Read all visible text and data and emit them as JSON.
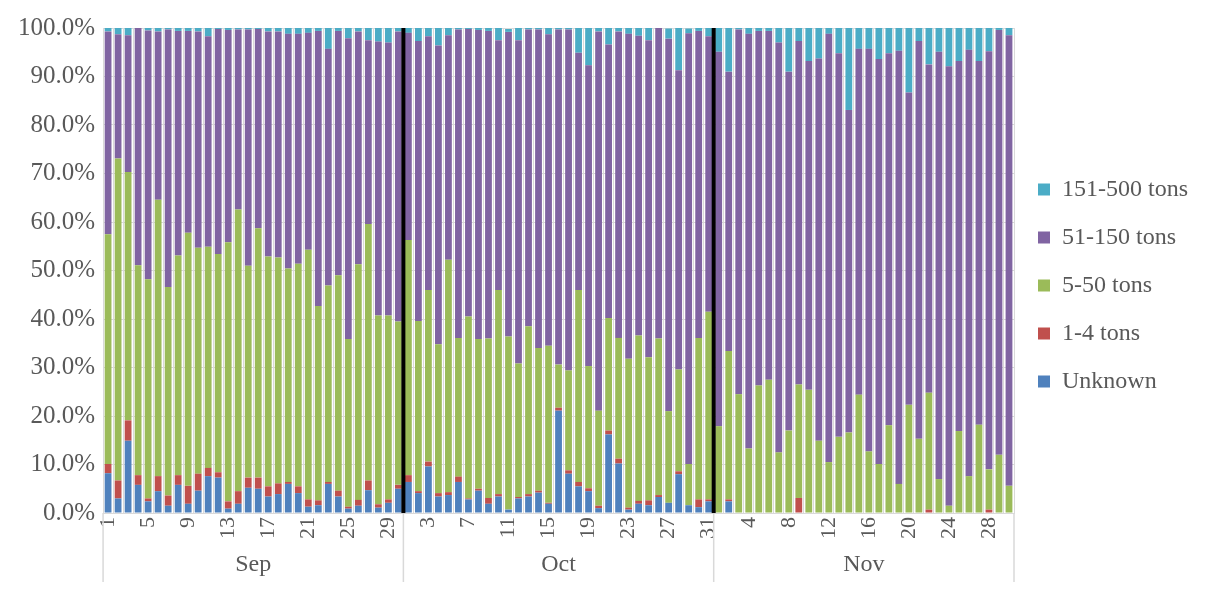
{
  "chart_data": {
    "type": "bar",
    "stacked": true,
    "grid": true,
    "legend": "right",
    "categories": [
      "1",
      null,
      null,
      null,
      "5",
      null,
      null,
      null,
      "9",
      null,
      null,
      null,
      "13",
      null,
      null,
      null,
      "17",
      null,
      null,
      null,
      "21",
      null,
      null,
      null,
      "25",
      null,
      null,
      null,
      "29",
      null,
      null,
      null,
      "3",
      null,
      null,
      null,
      "7",
      null,
      null,
      null,
      "11",
      null,
      null,
      null,
      "15",
      null,
      null,
      null,
      "19",
      null,
      null,
      null,
      "23",
      null,
      null,
      null,
      "27",
      null,
      null,
      null,
      "31",
      null,
      null,
      null,
      "4",
      null,
      null,
      null,
      "8",
      null,
      null,
      null,
      "12",
      null,
      null,
      null,
      "16",
      null,
      null,
      null,
      "20",
      null,
      null,
      null,
      "24",
      null,
      null,
      null,
      "28",
      null,
      null
    ],
    "annotations": [
      "Sep",
      "Oct",
      "Nov"
    ],
    "ylim": [
      0,
      100
    ],
    "yticks": [
      {
        "value": 0,
        "label": "0.0%"
      },
      {
        "value": 10,
        "label": "10.0%"
      },
      {
        "value": 20,
        "label": "20.0%"
      },
      {
        "value": 30,
        "label": "30.0%"
      },
      {
        "value": 40,
        "label": "40.0%"
      },
      {
        "value": 50,
        "label": "50.0%"
      },
      {
        "value": 60,
        "label": "60.0%"
      },
      {
        "value": 70,
        "label": "70.0%"
      },
      {
        "value": 80,
        "label": "80.0%"
      },
      {
        "value": 90,
        "label": "90.0%"
      },
      {
        "value": 100,
        "label": "100.0%"
      }
    ],
    "series": [
      {
        "name": "Unknown",
        "color": "#4f81bd",
        "values": [
          8.2,
          3.0,
          14.9,
          5.8,
          2.4,
          4.5,
          1.5,
          5.8,
          1.9,
          4.6,
          7.6,
          7.3,
          0.9,
          1.9,
          5.2,
          5.0,
          3.4,
          3.9,
          6.0,
          4.1,
          1.3,
          1.6,
          6.0,
          3.4,
          0.9,
          1.5,
          4.7,
          1.1,
          2.1,
          5.0,
          6.4,
          4.1,
          9.6,
          3.4,
          3.7,
          6.4,
          2.8,
          4.6,
          1.9,
          3.4,
          0.7,
          3.0,
          3.4,
          4.2,
          1.9,
          21.1,
          8.1,
          5.5,
          4.5,
          1.0,
          16.2,
          10.2,
          0.7,
          1.9,
          1.6,
          3.3,
          2.1,
          8.0,
          1.6,
          1.2,
          2.4,
          0,
          2.4,
          0,
          0,
          0,
          0,
          0,
          0,
          0,
          0,
          0,
          0,
          0,
          0,
          0,
          0,
          0,
          0,
          0,
          0,
          0,
          0,
          0,
          0,
          0,
          0,
          0,
          0,
          0,
          0
        ]
      },
      {
        "name": "1-4 tons",
        "color": "#c0504d",
        "values": [
          1.9,
          3.7,
          4.2,
          2.0,
          0.6,
          3.1,
          2.1,
          2.0,
          3.7,
          3.5,
          1.7,
          1.1,
          1.5,
          2.6,
          2.1,
          2.3,
          2.1,
          2.2,
          0.4,
          1.4,
          1.5,
          1.0,
          0.4,
          1.2,
          0.4,
          1.2,
          2.0,
          0.7,
          0.7,
          0.8,
          1.4,
          0.4,
          1.0,
          0.7,
          0.6,
          1.1,
          0.2,
          0.4,
          1.2,
          0.5,
          null,
          0.3,
          0.5,
          0.4,
          0.2,
          0.6,
          0.7,
          0.9,
          0.6,
          0.5,
          0.8,
          1.0,
          0.4,
          0.6,
          1.0,
          0.4,
          null,
          0.6,
          null,
          1.6,
          0.4,
          0,
          0.4,
          0,
          0,
          0,
          0,
          0,
          0,
          3.1,
          0,
          0,
          0,
          0,
          0,
          0,
          0,
          0,
          0,
          0,
          0,
          0,
          0.7,
          0,
          0,
          0,
          0,
          0,
          0.7,
          0,
          0
        ]
      },
      {
        "name": "5-50 tons",
        "color": "#9bbb59",
        "values": [
          47.4,
          66.4,
          51.2,
          43.3,
          45.2,
          57.0,
          43.0,
          45.3,
          52.2,
          46.6,
          45.6,
          45.0,
          53.4,
          58.1,
          43.7,
          51.4,
          47.4,
          46.6,
          44.0,
          45.9,
          51.5,
          40.1,
          40.5,
          44.4,
          34.6,
          48.6,
          52.9,
          38.9,
          37.9,
          33.7,
          48.5,
          35.1,
          35.4,
          30.7,
          47.9,
          28.6,
          37.5,
          30.9,
          32.9,
          42.1,
          35.7,
          27.5,
          34.6,
          29.4,
          32.4,
          8.9,
          20.6,
          39.6,
          25.2,
          19.6,
          23.2,
          24.9,
          30.7,
          34.1,
          29.5,
          32.3,
          18.9,
          21.0,
          8.5,
          33.3,
          38.7,
          17.9,
          30.6,
          24.5,
          13.3,
          26.3,
          27.5,
          12.5,
          17.0,
          23.4,
          25.4,
          14.9,
          10.5,
          15.7,
          16.6,
          24.4,
          12.7,
          10.1,
          18.1,
          6.0,
          22.3,
          15.3,
          24.1,
          7.0,
          1.5,
          16.9,
          7.6,
          18.2,
          8.3,
          12.0,
          5.6
        ]
      },
      {
        "name": "51-150 tons",
        "color": "#8064a2",
        "values": [
          41.8,
          25.6,
          28.2,
          48.9,
          51.3,
          34.7,
          53.1,
          46.3,
          41.6,
          44.6,
          43.4,
          46.4,
          43.8,
          37.1,
          48.7,
          41.1,
          46.4,
          46.6,
          48.4,
          47.4,
          44.7,
          56.7,
          48.8,
          50.4,
          62.0,
          48.0,
          37.9,
          56.5,
          56.3,
          59.8,
          42.7,
          57.7,
          52.3,
          61.6,
          46.3,
          63.6,
          59.3,
          63.7,
          63.4,
          51.5,
          62.8,
          66.7,
          61.2,
          65.7,
          64.2,
          69.1,
          70.3,
          48.9,
          62.0,
          78.2,
          56.4,
          63.2,
          67.0,
          61.8,
          65.4,
          64.0,
          76.8,
          61.7,
          88.8,
          63.3,
          56.8,
          77.2,
          57.6,
          75.2,
          85.5,
          73.1,
          71.9,
          84.5,
          74.0,
          70.8,
          67.8,
          78.8,
          88.3,
          79.1,
          66.5,
          71.3,
          83.0,
          83.5,
          76.7,
          89.3,
          64.4,
          82.0,
          67.7,
          88.1,
          90.6,
          76.3,
          87.9,
          75.0,
          86.2,
          87.6,
          92.9
        ]
      },
      {
        "name": "151-500 tons",
        "color": "#4bacc6",
        "values": [
          0.7,
          1.3,
          1.5,
          0,
          0.5,
          0.7,
          0.3,
          0.6,
          0.6,
          0.7,
          1.7,
          0.2,
          0.4,
          0.3,
          0.3,
          0.2,
          0.7,
          0.7,
          1.2,
          1.2,
          1.0,
          0.6,
          4.3,
          0.6,
          2.1,
          0.7,
          2.5,
          2.8,
          3.0,
          0.7,
          1.0,
          2.7,
          1.7,
          3.6,
          1.5,
          0.3,
          0.2,
          0.4,
          0.6,
          2.5,
          0.6,
          2.5,
          0.3,
          0.3,
          1.3,
          0.3,
          0.3,
          5.1,
          7.7,
          0.7,
          3.4,
          0.7,
          1.2,
          1.6,
          2.5,
          0,
          2.1,
          8.7,
          1.0,
          0.6,
          1.7,
          4.9,
          9.0,
          0.3,
          1.2,
          0.6,
          0.6,
          3.0,
          9.0,
          2.7,
          6.8,
          6.3,
          1.2,
          5.2,
          16.9,
          4.3,
          4.3,
          6.4,
          5.2,
          4.7,
          13.3,
          2.7,
          7.5,
          4.9,
          7.9,
          6.8,
          4.5,
          6.8,
          4.8,
          0.4,
          1.5
        ]
      }
    ]
  }
}
